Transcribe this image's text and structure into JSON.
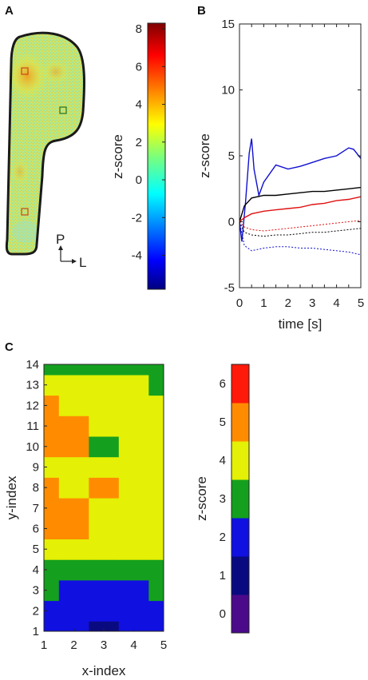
{
  "panels": {
    "a": {
      "label": "A",
      "orient_p": "P",
      "orient_l": "L",
      "colorbar": {
        "label": "z-score",
        "ticks": [
          "8",
          "6",
          "4",
          "2",
          "0",
          "-2",
          "-4"
        ],
        "range": [
          -5.8,
          8.3
        ]
      }
    },
    "b": {
      "label": "B"
    },
    "c": {
      "label": "C",
      "colorbar": {
        "label": "z-score",
        "ticks": [
          "6",
          "5",
          "4",
          "3",
          "2",
          "1",
          "0"
        ]
      }
    }
  },
  "chart_data": [
    {
      "id": "A",
      "type": "heatmap",
      "title": "",
      "colorbar_label": "z-score",
      "colorbar_ticks": [
        8,
        6,
        4,
        2,
        0,
        -2,
        -4
      ],
      "colorbar_range": [
        -5.8,
        8.3
      ],
      "orientation_labels": [
        "P",
        "L"
      ],
      "roi_markers": [
        {
          "location": "upper-left",
          "color": "#d04a1a"
        },
        {
          "location": "upper-right",
          "color": "#2a7a2a"
        },
        {
          "location": "lower-left",
          "color": "#d04a1a"
        }
      ]
    },
    {
      "id": "B",
      "type": "line",
      "xlabel": "time [s]",
      "ylabel": "z-score",
      "xlim": [
        0,
        5
      ],
      "ylim": [
        -5,
        15
      ],
      "xticks": [
        0,
        0.5,
        1,
        1.5,
        2,
        2.5,
        3,
        3.5,
        4,
        4.5,
        5
      ],
      "yticks": [
        -5,
        0,
        5,
        10,
        15
      ],
      "series": [
        {
          "color": "#1010d0",
          "style": "solid",
          "x": [
            0,
            0.1,
            0.25,
            0.4,
            0.5,
            0.6,
            0.8,
            1.0,
            1.5,
            2.0,
            2.5,
            3.0,
            3.5,
            4.0,
            4.5,
            4.7,
            5.0
          ],
          "y": [
            0,
            -1.5,
            1.5,
            5.2,
            6.3,
            4.0,
            2.0,
            3.0,
            4.3,
            4.0,
            4.2,
            4.5,
            4.8,
            5.0,
            5.6,
            5.5,
            4.8
          ]
        },
        {
          "color": "#000000",
          "style": "solid",
          "x": [
            0,
            0.2,
            0.5,
            1.0,
            1.5,
            2.0,
            2.5,
            3.0,
            3.5,
            4.0,
            4.5,
            5.0
          ],
          "y": [
            0,
            1.2,
            1.8,
            2.0,
            2.0,
            2.1,
            2.2,
            2.3,
            2.3,
            2.4,
            2.5,
            2.6
          ]
        },
        {
          "color": "#e01010",
          "style": "solid",
          "x": [
            0,
            0.2,
            0.5,
            1.0,
            1.5,
            2.0,
            2.5,
            3.0,
            3.5,
            4.0,
            4.5,
            5.0
          ],
          "y": [
            0,
            0.3,
            0.6,
            0.8,
            0.9,
            1.0,
            1.1,
            1.3,
            1.4,
            1.6,
            1.7,
            1.9
          ]
        },
        {
          "color": "#e01010",
          "style": "dotted",
          "x": [
            0,
            0.2,
            0.5,
            1.0,
            1.5,
            2.0,
            2.5,
            3.0,
            3.5,
            4.0,
            4.5,
            5.0
          ],
          "y": [
            0,
            -0.4,
            -0.6,
            -0.7,
            -0.6,
            -0.5,
            -0.4,
            -0.3,
            -0.2,
            -0.1,
            0,
            0.1
          ]
        },
        {
          "color": "#000000",
          "style": "dotted",
          "x": [
            0,
            0.2,
            0.5,
            1.0,
            1.5,
            2.0,
            2.5,
            3.0,
            3.5,
            4.0,
            4.5,
            5.0
          ],
          "y": [
            0,
            -0.8,
            -1.0,
            -1.1,
            -1.0,
            -1.0,
            -0.9,
            -0.8,
            -0.8,
            -0.7,
            -0.6,
            -0.5
          ]
        },
        {
          "color": "#1010d0",
          "style": "dotted",
          "x": [
            0,
            0.2,
            0.5,
            1.0,
            1.5,
            2.0,
            2.5,
            3.0,
            3.5,
            4.0,
            4.5,
            5.0
          ],
          "y": [
            0,
            -1.8,
            -2.2,
            -2.0,
            -1.9,
            -1.9,
            -2.0,
            -2.0,
            -2.1,
            -2.2,
            -2.3,
            -2.5
          ]
        }
      ]
    },
    {
      "id": "C",
      "type": "heatmap",
      "xlabel": "x-index",
      "ylabel": "y-index",
      "xlim": [
        1,
        5
      ],
      "ylim": [
        1,
        14
      ],
      "xticks": [
        1,
        2,
        3,
        4,
        5
      ],
      "yticks": [
        1,
        2,
        3,
        4,
        5,
        6,
        7,
        8,
        9,
        10,
        11,
        12,
        13,
        14
      ],
      "colorbar_label": "z-score",
      "colorbar_ticks": [
        6,
        5,
        4,
        3,
        2,
        1,
        0
      ],
      "colorbar_range": [
        -0.5,
        6.5
      ],
      "colorbar_colors": [
        "#4b0a8a",
        "#0a0a80",
        "#1010e0",
        "#14a01e",
        "#e4f005",
        "#ff8c00",
        "#ff1a0a"
      ],
      "x": [
        1,
        2,
        3,
        4,
        5
      ],
      "y": [
        1,
        2,
        3,
        4,
        5,
        6,
        7,
        8,
        9,
        10,
        11,
        12,
        13,
        14
      ],
      "z": [
        [
          1.8,
          1.6,
          1.3,
          1.5,
          1.8
        ],
        [
          2.0,
          1.7,
          1.6,
          1.7,
          2.0
        ],
        [
          2.5,
          2.2,
          2.1,
          2.3,
          2.6
        ],
        [
          3.1,
          3.0,
          3.0,
          3.1,
          3.2
        ],
        [
          4.0,
          3.8,
          3.7,
          3.6,
          3.5
        ],
        [
          5.3,
          4.6,
          4.3,
          4.0,
          3.7
        ],
        [
          5.0,
          4.5,
          4.4,
          4.1,
          3.8
        ],
        [
          4.6,
          4.3,
          4.8,
          4.1,
          3.8
        ],
        [
          4.4,
          4.3,
          3.8,
          4.0,
          4.0
        ],
        [
          4.6,
          4.8,
          3.3,
          3.8,
          4.4
        ],
        [
          4.8,
          4.5,
          3.8,
          4.0,
          4.1
        ],
        [
          5.1,
          4.3,
          4.0,
          4.0,
          3.6
        ],
        [
          4.3,
          3.8,
          3.6,
          3.9,
          3.3
        ],
        [
          3.4,
          3.3,
          2.9,
          3.3,
          3.4
        ]
      ]
    }
  ]
}
